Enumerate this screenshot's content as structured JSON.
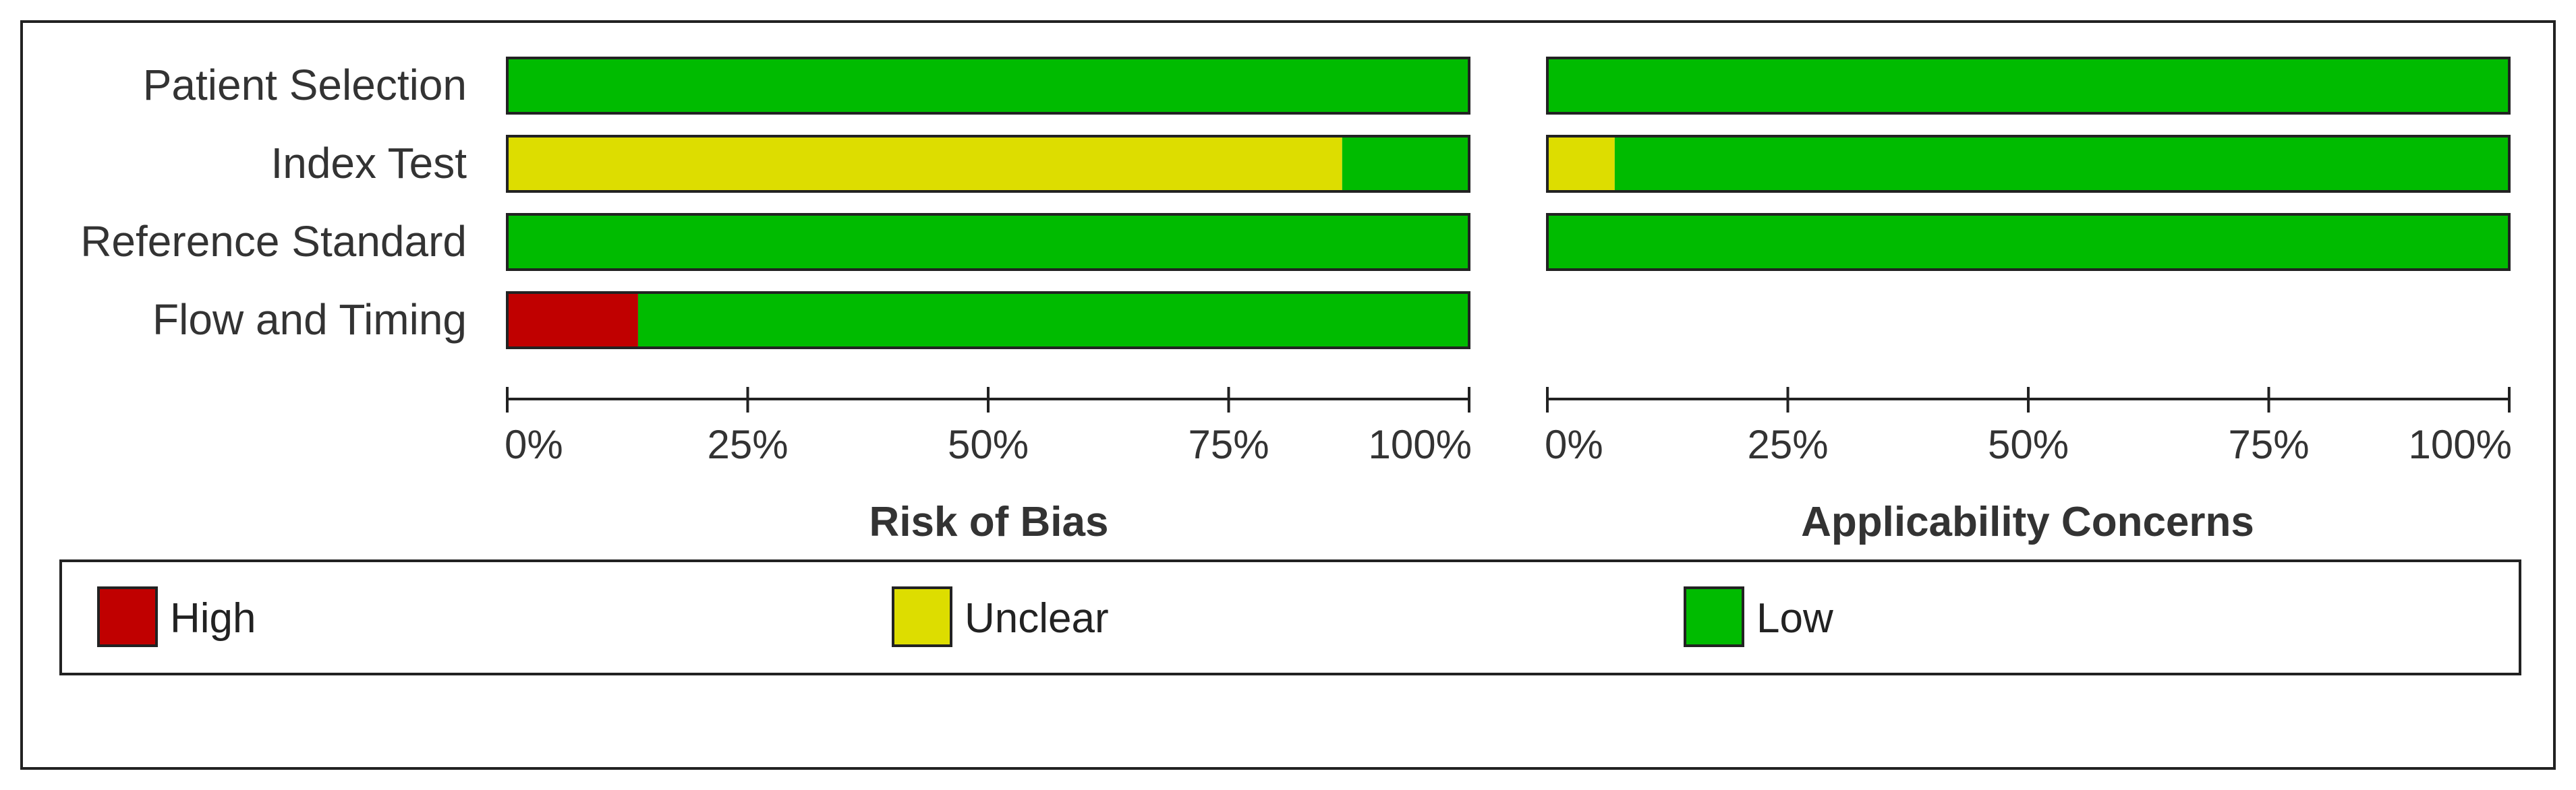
{
  "colors": {
    "High": "#c00000",
    "Unclear": "#dddd00",
    "Low": "#00bb00"
  },
  "chart_data": [
    {
      "type": "bar",
      "orientation": "horizontal",
      "stacked": true,
      "title": "Risk of Bias",
      "categories": [
        "Patient Selection",
        "Index Test",
        "Reference Standard",
        "Flow and Timing"
      ],
      "series": [
        {
          "name": "High",
          "values": [
            0,
            0,
            0,
            13.6
          ]
        },
        {
          "name": "Unclear",
          "values": [
            0,
            86.8,
            0,
            0
          ]
        },
        {
          "name": "Low",
          "values": [
            100,
            13.2,
            100,
            86.4
          ]
        }
      ],
      "xlim": [
        0,
        100
      ],
      "x_ticks": [
        "0%",
        "25%",
        "50%",
        "75%",
        "100%"
      ],
      "grid": false
    },
    {
      "type": "bar",
      "orientation": "horizontal",
      "stacked": true,
      "title": "Applicability Concerns",
      "categories": [
        "Patient Selection",
        "Index Test",
        "Reference Standard"
      ],
      "series": [
        {
          "name": "High",
          "values": [
            0,
            0,
            0
          ]
        },
        {
          "name": "Unclear",
          "values": [
            0,
            7.0,
            0
          ]
        },
        {
          "name": "Low",
          "values": [
            100,
            93.0,
            100
          ]
        }
      ],
      "xlim": [
        0,
        100
      ],
      "x_ticks": [
        "0%",
        "25%",
        "50%",
        "75%",
        "100%"
      ],
      "grid": false
    }
  ],
  "legend": {
    "placement": "bottom",
    "items": [
      "High",
      "Unclear",
      "Low"
    ]
  }
}
